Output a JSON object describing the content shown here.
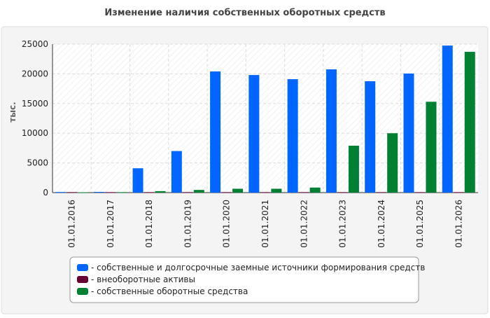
{
  "chart_data": {
    "type": "bar",
    "title": "Изменение наличия собственных оборотных средств",
    "y_label": "тыс.",
    "categories": [
      "01.01.2016",
      "01.01.2017",
      "01.01.2018",
      "01.01.2019",
      "01.01.2020",
      "01.01.2021",
      "01.01.2022",
      "01.01.2023",
      "01.01.2024",
      "01.01.2025",
      "01.01.2026"
    ],
    "series": [
      {
        "name": "- собственные и долгосрочные заемные источники формирования средств",
        "color": "#0066ff",
        "values": [
          100,
          120,
          4100,
          7000,
          20400,
          19800,
          19100,
          20750,
          18750,
          20050,
          24760
        ]
      },
      {
        "name": "- внеоборотные активы",
        "color": "#660033",
        "values": [
          80,
          80,
          80,
          80,
          80,
          80,
          80,
          80,
          80,
          80,
          80
        ]
      },
      {
        "name": "- собственные оборотные средства",
        "color": "#008033",
        "values": [
          50,
          80,
          250,
          450,
          650,
          650,
          850,
          7900,
          10000,
          15300,
          23700
        ]
      }
    ],
    "ylim": [
      0,
      25000
    ],
    "yticks": [
      0,
      5000,
      10000,
      15000,
      20000,
      25000
    ],
    "grid": true
  }
}
